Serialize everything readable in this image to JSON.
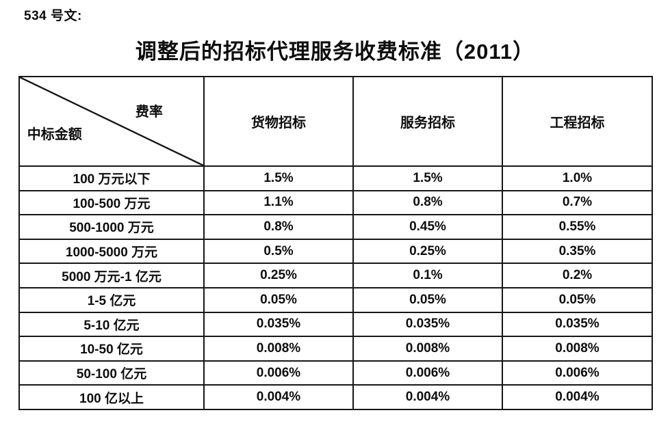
{
  "doc_ref": "534 号文:",
  "title": "调整后的招标代理服务收费标准（2011）",
  "table": {
    "corner": {
      "top_right": "费率",
      "bottom_left": "中标金额"
    },
    "columns": [
      "货物招标",
      "服务招标",
      "工程招标"
    ],
    "rows": [
      {
        "label": "100 万元以下",
        "values": [
          "1.5%",
          "1.5%",
          "1.0%"
        ]
      },
      {
        "label": "100-500 万元",
        "values": [
          "1.1%",
          "0.8%",
          "0.7%"
        ]
      },
      {
        "label": "500-1000 万元",
        "values": [
          "0.8%",
          "0.45%",
          "0.55%"
        ]
      },
      {
        "label": "1000-5000 万元",
        "values": [
          "0.5%",
          "0.25%",
          "0.35%"
        ]
      },
      {
        "label": "5000 万元-1 亿元",
        "values": [
          "0.25%",
          "0.1%",
          "0.2%"
        ]
      },
      {
        "label": "1-5 亿元",
        "values": [
          "0.05%",
          "0.05%",
          "0.05%"
        ]
      },
      {
        "label": "5-10 亿元",
        "values": [
          "0.035%",
          "0.035%",
          "0.035%"
        ]
      },
      {
        "label": "10-50 亿元",
        "values": [
          "0.008%",
          "0.008%",
          "0.008%"
        ]
      },
      {
        "label": "50-100 亿元",
        "values": [
          "0.006%",
          "0.006%",
          "0.006%"
        ]
      },
      {
        "label": "100 亿以上",
        "values": [
          "0.004%",
          "0.004%",
          "0.004%"
        ]
      }
    ]
  },
  "colors": {
    "text": "#0d0d0d",
    "border": "#161616",
    "background": "#ffffff"
  }
}
